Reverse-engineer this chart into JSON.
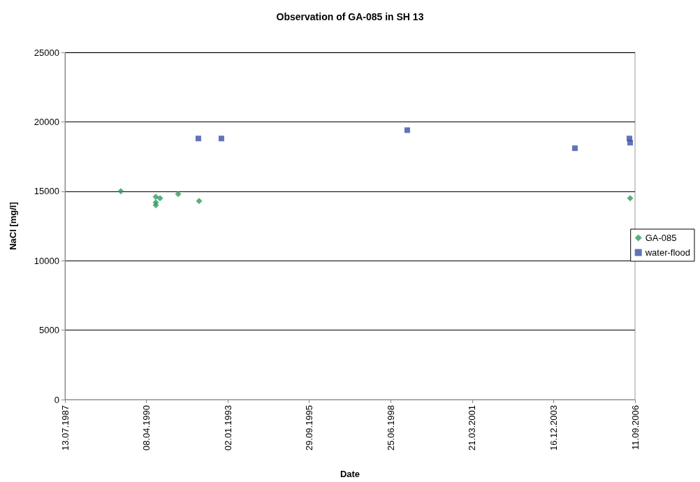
{
  "chart_data": {
    "type": "scatter",
    "title": "Observation of GA-085 in SH 13",
    "xlabel": "Date",
    "ylabel": "NaCl [mg/l]",
    "series": [
      {
        "name": "GA-085",
        "color": "#2e9b5f",
        "marker": "diamond",
        "x": [
          "1989-05-29",
          "1990-08-01",
          "1990-08-01",
          "1990-08-01",
          "1990-09-22",
          "1991-05-03",
          "1992-01-15",
          "2006-07-13"
        ],
        "values": [
          15000,
          14600,
          14200,
          14000,
          14500,
          14800,
          14300,
          14500
        ]
      },
      {
        "name": "water-flood",
        "color": "#3a50a8",
        "marker": "square",
        "x": [
          "1992-01-06",
          "1992-10-15",
          "1999-01-14",
          "2004-09-03",
          "2006-07-04",
          "2006-07-13"
        ],
        "values": [
          18800,
          18800,
          19400,
          18100,
          18800,
          18500
        ]
      }
    ],
    "xlim": [
      "1987-07-13",
      "2006-09-11"
    ],
    "xticks": [
      {
        "value": "1987-07-13",
        "label": "13.07.1987"
      },
      {
        "value": "1990-04-08",
        "label": "08.04.1990"
      },
      {
        "value": "1993-01-02",
        "label": "02.01.1993"
      },
      {
        "value": "1995-09-29",
        "label": "29.09.1995"
      },
      {
        "value": "1998-06-25",
        "label": "25.06.1998"
      },
      {
        "value": "2001-03-21",
        "label": "21.03.2001"
      },
      {
        "value": "2003-12-16",
        "label": "16.12.2003"
      },
      {
        "value": "2006-09-11",
        "label": "11.09.2006"
      }
    ],
    "ylim": [
      0,
      25000
    ],
    "yticks": [
      0,
      5000,
      10000,
      15000,
      20000,
      25000
    ],
    "grid": "y",
    "legend": "right"
  }
}
